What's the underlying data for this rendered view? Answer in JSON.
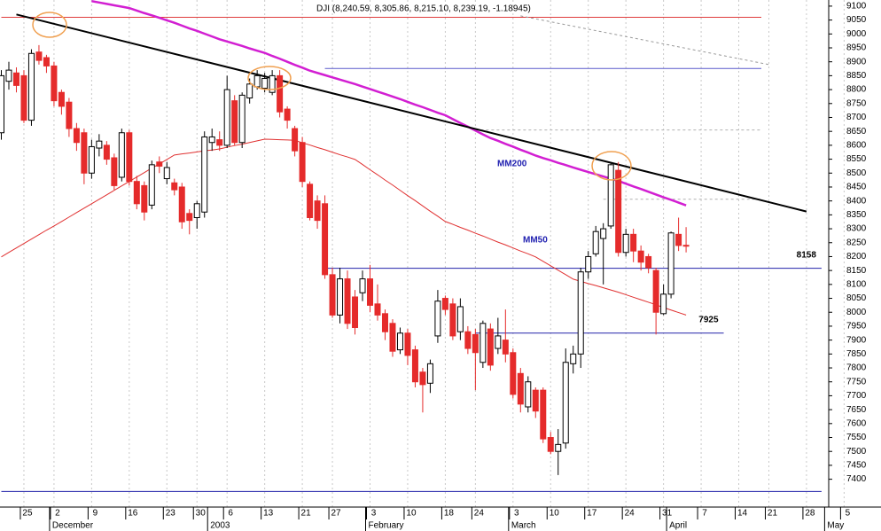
{
  "chart_data": {
    "type": "candlestick",
    "title": "DJI (8,240.59, 8,305.86, 8,215.10, 8,239.19, -1.18945)",
    "categories": [
      null,
      null,
      null,
      "25",
      null,
      null,
      null,
      "2",
      null,
      null,
      null,
      null,
      "9",
      null,
      null,
      null,
      null,
      "16",
      null,
      null,
      null,
      null,
      "23",
      null,
      null,
      null,
      "30",
      null,
      null,
      null,
      "6",
      null,
      null,
      null,
      null,
      "13",
      null,
      null,
      null,
      null,
      "21",
      null,
      null,
      null,
      "27",
      null,
      null,
      null,
      null,
      "3",
      null,
      null,
      null,
      null,
      "10",
      null,
      null,
      null,
      null,
      "18",
      null,
      null,
      null,
      "24",
      null,
      null,
      null,
      null,
      "3",
      null,
      null,
      null,
      null,
      "10",
      null,
      null,
      null,
      null,
      "17",
      null,
      null,
      null,
      null,
      "24",
      null,
      null,
      null,
      null,
      "31",
      null,
      null,
      null,
      null,
      "7",
      null,
      null,
      null,
      null,
      "14",
      null,
      null,
      null,
      "21",
      null,
      null,
      null,
      null,
      "28",
      null,
      null,
      null,
      null,
      "5"
    ],
    "months": [
      null,
      null,
      null,
      null,
      null,
      null,
      null,
      "December",
      null,
      null,
      null,
      null,
      null,
      null,
      null,
      null,
      null,
      null,
      null,
      null,
      null,
      null,
      null,
      null,
      null,
      null,
      null,
      null,
      "2003",
      null,
      null,
      null,
      null,
      null,
      null,
      null,
      null,
      null,
      null,
      null,
      null,
      null,
      null,
      null,
      null,
      null,
      null,
      null,
      null,
      "February",
      null,
      null,
      null,
      null,
      null,
      null,
      null,
      null,
      null,
      null,
      null,
      null,
      null,
      null,
      null,
      null,
      null,
      null,
      "March",
      null,
      null,
      null,
      null,
      null,
      null,
      null,
      null,
      null,
      null,
      null,
      null,
      null,
      null,
      null,
      null,
      null,
      null,
      null,
      null,
      "April",
      null,
      null,
      null,
      null,
      null,
      null,
      null,
      null,
      null,
      null,
      null,
      null,
      null,
      null,
      null,
      null,
      null,
      null,
      null,
      null,
      "May",
      null,
      null
    ],
    "open": [
      8645,
      8830,
      8860,
      8850,
      8690,
      8935,
      8915,
      8885,
      8790,
      8755,
      8660,
      8645,
      8500,
      8590,
      8600,
      8555,
      8485,
      8645,
      8470,
      8455,
      8385,
      8540,
      8480,
      8465,
      8450,
      8355,
      8340,
      8360,
      8610,
      8620,
      8600,
      8760,
      8610,
      8770,
      8810,
      8805,
      8790,
      8850,
      8730,
      8660,
      8610,
      8460,
      8400,
      8390,
      8135,
      7990,
      8120,
      8055,
      8070,
      8120,
      8030,
      7995,
      7960,
      7865,
      7925,
      7865,
      7785,
      7745,
      7915,
      8050,
      8030,
      7930,
      7930,
      7920,
      7820,
      7940,
      7870,
      7900,
      7855,
      7780,
      7660,
      7720,
      7720,
      7550,
      7500,
      7530,
      7815,
      7850,
      8145,
      8210,
      8265,
      8310,
      8510,
      8215,
      8280,
      8220,
      8200,
      8150,
      7995,
      8065,
      8280,
      8240.59,
      null,
      null,
      null,
      null,
      null,
      null,
      null,
      null,
      null,
      null,
      null,
      null,
      null,
      null,
      null,
      null,
      null,
      null,
      null,
      null,
      null
    ],
    "high": [
      8870,
      8900,
      8880,
      8870,
      8945,
      8960,
      8925,
      8900,
      8800,
      8770,
      8680,
      8660,
      8620,
      8640,
      8615,
      8570,
      8660,
      8655,
      8490,
      8470,
      8545,
      8560,
      8540,
      8480,
      8465,
      8370,
      8400,
      8650,
      8660,
      8650,
      8850,
      8780,
      8790,
      8840,
      8870,
      8860,
      8870,
      8870,
      8740,
      8670,
      8630,
      8470,
      8420,
      8420,
      8160,
      8160,
      8150,
      8080,
      8150,
      8170,
      8100,
      8010,
      7975,
      7945,
      7940,
      7880,
      7800,
      7830,
      8080,
      8060,
      8050,
      8050,
      7950,
      7940,
      7970,
      7960,
      7980,
      8010,
      7870,
      7800,
      7770,
      7730,
      7730,
      7570,
      7580,
      7870,
      7880,
      8160,
      8220,
      8310,
      8320,
      8540,
      8540,
      8300,
      8300,
      8240,
      8210,
      8160,
      8100,
      8290,
      8340,
      8305.86,
      null,
      null,
      null,
      null,
      null,
      null,
      null,
      null,
      null,
      null,
      null,
      null,
      null,
      null,
      null,
      null,
      null,
      null,
      null,
      null,
      null
    ],
    "low": [
      8620,
      8800,
      8790,
      8680,
      8670,
      8890,
      8860,
      8740,
      8710,
      8630,
      8580,
      8460,
      8480,
      8560,
      8530,
      8440,
      8470,
      8455,
      8370,
      8330,
      8370,
      8500,
      8460,
      8420,
      8300,
      8280,
      8300,
      8340,
      8580,
      8580,
      8590,
      8600,
      8590,
      8750,
      8800,
      8790,
      8780,
      8700,
      8660,
      8560,
      8450,
      8330,
      8300,
      8120,
      7980,
      7960,
      7940,
      7920,
      8040,
      8000,
      7970,
      7900,
      7840,
      7850,
      7810,
      7730,
      7640,
      7710,
      7890,
      7990,
      7900,
      7900,
      7850,
      7720,
      7800,
      7790,
      7850,
      7820,
      7690,
      7640,
      7640,
      7620,
      7530,
      7490,
      7415,
      7510,
      7780,
      7800,
      8120,
      8200,
      8100,
      8300,
      8200,
      8200,
      8180,
      8150,
      8140,
      7920,
      7990,
      8050,
      8220,
      8215.1,
      null,
      null,
      null,
      null,
      null,
      null,
      null,
      null,
      null,
      null,
      null,
      null,
      null,
      null,
      null,
      null,
      null,
      null,
      null,
      null,
      null
    ],
    "close": [
      8850,
      8870,
      8815,
      8690,
      8930,
      8905,
      8885,
      8760,
      8740,
      8660,
      8610,
      8500,
      8595,
      8615,
      8550,
      8455,
      8645,
      8470,
      8390,
      8360,
      8530,
      8525,
      8520,
      8440,
      8325,
      8330,
      8390,
      8630,
      8630,
      8600,
      8800,
      8610,
      8780,
      8820,
      8850,
      8840,
      8850,
      8720,
      8690,
      8580,
      8470,
      8340,
      8330,
      8135,
      7990,
      8120,
      7960,
      7945,
      8120,
      8025,
      7990,
      7930,
      7860,
      7925,
      7845,
      7750,
      7740,
      7815,
      8040,
      8010,
      7915,
      8020,
      7870,
      7855,
      7960,
      7810,
      7915,
      7850,
      7705,
      7670,
      7750,
      7645,
      7545,
      7500,
      7525,
      7820,
      7850,
      8145,
      8200,
      8290,
      8300,
      8530,
      8215,
      8280,
      8220,
      8180,
      8160,
      8000,
      8065,
      8285,
      8240,
      8239.19,
      null,
      null,
      null,
      null,
      null,
      null,
      null,
      null,
      null,
      null,
      null,
      null,
      null,
      null,
      null,
      null,
      null,
      null,
      null,
      null,
      null
    ],
    "up_color": "#ffffff",
    "down_color": "#e52b2b",
    "moving_averages": [
      {
        "name": "MM50",
        "color": "#e03030",
        "values": [
          8199,
          8215,
          8231,
          8247,
          8263,
          8279,
          8295,
          8310,
          8326,
          8342,
          8358,
          8374,
          8390,
          8406,
          8422,
          8438,
          8454,
          8470,
          8486,
          8502,
          8518,
          8533,
          8549,
          8565,
          8569,
          8572,
          8576,
          8580,
          8583,
          8587,
          8593,
          8599,
          8604,
          8610,
          8616,
          8622,
          8621,
          8620,
          8619,
          8618,
          8609,
          8601,
          8592,
          8584,
          8575,
          8566,
          8558,
          8549,
          8531,
          8512,
          8494,
          8475,
          8457,
          8438,
          8419,
          8401,
          8382,
          8363,
          8345,
          8326,
          8316,
          8305,
          8295,
          8284,
          8274,
          8263,
          8252,
          8242,
          8231,
          8220,
          8210,
          8199,
          8183,
          8167,
          8151,
          8135,
          8119,
          8111,
          8103,
          8096,
          8088,
          8080,
          8072,
          8063,
          8054,
          8045,
          8036,
          8027,
          8017,
          8008,
          7999,
          7990,
          null,
          null,
          null,
          null,
          null,
          null,
          null,
          null,
          null,
          null,
          null,
          null,
          null,
          null,
          null,
          null,
          null,
          null,
          null,
          null,
          null
        ]
      },
      {
        "name": "MM200",
        "color": "#d21fd2",
        "values": [
          null,
          null,
          null,
          null,
          null,
          null,
          null,
          null,
          null,
          null,
          null,
          null,
          9118,
          9113,
          9108,
          9103,
          9098,
          9093,
          9084,
          9075,
          9067,
          9058,
          9049,
          9040,
          9030,
          9020,
          9011,
          9001,
          8991,
          8981,
          8973,
          8965,
          8957,
          8948,
          8940,
          8932,
          8921,
          8911,
          8900,
          8889,
          8879,
          8868,
          8860,
          8852,
          8844,
          8836,
          8828,
          8820,
          8811,
          8802,
          8793,
          8784,
          8775,
          8766,
          8756,
          8746,
          8737,
          8727,
          8717,
          8708,
          8694,
          8680,
          8667,
          8653,
          8639,
          8626,
          8616,
          8605,
          8595,
          8584,
          8574,
          8563,
          8554,
          8546,
          8537,
          8529,
          8520,
          8512,
          8504,
          8496,
          8488,
          8480,
          8472,
          8462,
          8452,
          8443,
          8433,
          8423,
          8413,
          8404,
          8394,
          8384,
          null,
          null,
          null,
          null,
          null,
          null,
          null,
          null,
          null,
          null,
          null,
          null,
          null,
          null,
          null,
          null,
          null,
          null,
          null,
          null,
          null
        ]
      }
    ],
    "hlines": [
      {
        "y": 9060,
        "from": 0,
        "to": 101,
        "color": "#e03c3c"
      },
      {
        "y": 8876,
        "from": 43,
        "to": 101,
        "color": "#5a5acc"
      },
      {
        "y": 8655,
        "from": 63,
        "to": 101,
        "color": "#b0b0b0",
        "dashed": true
      },
      {
        "y": 8406,
        "from": 80,
        "to": 101,
        "color": "#b0b0b0",
        "dashed": true
      },
      {
        "y": 8158,
        "from": 43,
        "to": 109,
        "color": "#2222aa",
        "label": "8158",
        "label_color": "#000000"
      },
      {
        "y": 7925,
        "from": 63,
        "to": 96,
        "color": "#2222aa",
        "label": "7925",
        "label_color": "#e02020"
      },
      {
        "y": 7356,
        "from": 0,
        "to": 109,
        "color": "#2222aa"
      }
    ],
    "trendlines": [
      {
        "x": [
          2,
          107
        ],
        "y": [
          9070,
          8362
        ],
        "color": "#000000",
        "width": 2
      },
      {
        "x": [
          69,
          102
        ],
        "y": [
          9065,
          8890
        ],
        "color": "#999999",
        "width": 1,
        "dashed": true
      }
    ],
    "ylim": [
      7300,
      9122
    ],
    "yticks": [
      7400,
      7450,
      7500,
      7550,
      7600,
      7650,
      7700,
      7750,
      7800,
      7850,
      7900,
      7950,
      8000,
      8050,
      8100,
      8150,
      8200,
      8250,
      8300,
      8350,
      8400,
      8450,
      8500,
      8550,
      8600,
      8650,
      8700,
      8750,
      8800,
      8850,
      8900,
      8950,
      9000,
      9050,
      9100
    ],
    "grid": true
  }
}
